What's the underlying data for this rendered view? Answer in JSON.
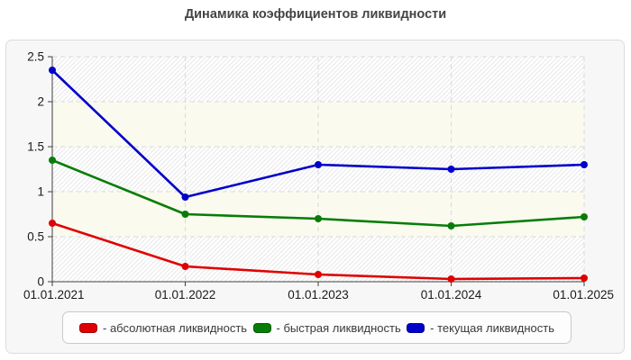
{
  "page": {
    "title": "Динамика коэффициентов ликвидности"
  },
  "chart_data": {
    "type": "line",
    "title": "Динамика коэффициентов ликвидности",
    "categories": [
      "01.01.2021",
      "01.01.2022",
      "01.01.2023",
      "01.01.2024",
      "01.01.2025"
    ],
    "series": [
      {
        "name": "абсолютная ликвидность",
        "color": "#e00000",
        "values": [
          0.65,
          0.17,
          0.08,
          0.03,
          0.04
        ]
      },
      {
        "name": "быстрая ликвидность",
        "color": "#077d07",
        "values": [
          1.35,
          0.75,
          0.7,
          0.62,
          0.72
        ]
      },
      {
        "name": "текущая ликвидность",
        "color": "#0000cc",
        "values": [
          2.35,
          0.94,
          1.3,
          1.25,
          1.3
        ]
      }
    ],
    "xlabel": "",
    "ylabel": "",
    "ylim": [
      0,
      2.5
    ],
    "yticks": [
      0,
      0.5,
      1,
      1.5,
      2,
      2.5
    ],
    "ytick_labels": [
      "0",
      "0.5",
      "1",
      "1.5",
      "2",
      "2.5"
    ],
    "grid": true,
    "grid_style": "dashed",
    "legend_position": "bottom",
    "plot_bands": {
      "hatch_line_color": "#e9e9e9",
      "solid_band_color": "#fafaef",
      "base_color": "#ffffff"
    },
    "axis_color": "#3f3f3f",
    "grid_color": "#d9d9d9",
    "tick_label_color": "#1a1a1a"
  },
  "legend": {
    "items": [
      {
        "label": "- абсолютная ликвидность",
        "color": "#e00000"
      },
      {
        "label": "- быстрая ликвидность",
        "color": "#077d07"
      },
      {
        "label": "- текущая ликвидность",
        "color": "#0000cc"
      }
    ]
  }
}
